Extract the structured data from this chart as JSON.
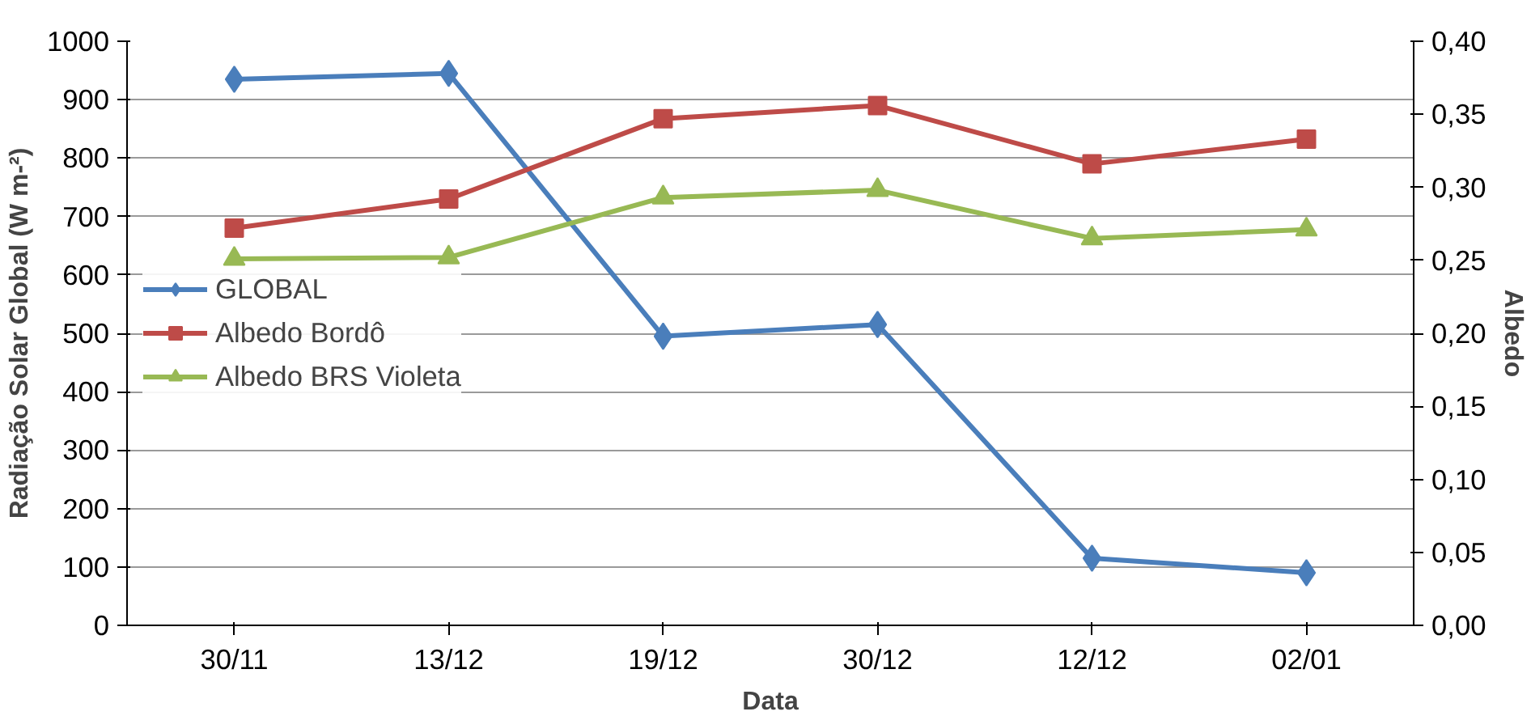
{
  "chart_data": {
    "type": "line",
    "xlabel": "Data",
    "ylabel": "Radiação Solar Global (W m-²)",
    "y2label": "Albedo",
    "categories": [
      "30/11",
      "13/12",
      "19/12",
      "30/12",
      "12/12",
      "02/01"
    ],
    "series": [
      {
        "name": "GLOBAL",
        "color": "#4a7ebb",
        "marker": "diamond",
        "values": [
          935,
          945,
          495,
          515,
          115,
          90
        ]
      },
      {
        "name": "Albedo Bordô",
        "color": "#be4b48",
        "marker": "square",
        "axis": "y2",
        "values": [
          0.272,
          0.292,
          0.347,
          0.356,
          0.316,
          0.333
        ]
      },
      {
        "name": "Albedo BRS Violeta",
        "color": "#98b954",
        "marker": "triangle",
        "axis": "y2",
        "values": [
          0.251,
          0.252,
          0.293,
          0.298,
          0.265,
          0.271
        ]
      }
    ],
    "ylim": [
      0,
      1000
    ],
    "yticks": [
      0,
      100,
      200,
      300,
      400,
      500,
      600,
      700,
      800,
      900,
      1000
    ],
    "y2lim": [
      0,
      0.4
    ],
    "y2ticks": [
      {
        "value": 0,
        "label": "0,00"
      },
      {
        "value": 0.05,
        "label": "0,05"
      },
      {
        "value": 0.1,
        "label": "0,10"
      },
      {
        "value": 0.15,
        "label": "0,15"
      },
      {
        "value": 0.2,
        "label": "0,20"
      },
      {
        "value": 0.25,
        "label": "0,25"
      },
      {
        "value": 0.3,
        "label": "0,30"
      },
      {
        "value": 0.35,
        "label": "0,35"
      },
      {
        "value": 0.4,
        "label": "0,40"
      }
    ],
    "grid": "y",
    "legend": "left",
    "line_style": "solid"
  }
}
